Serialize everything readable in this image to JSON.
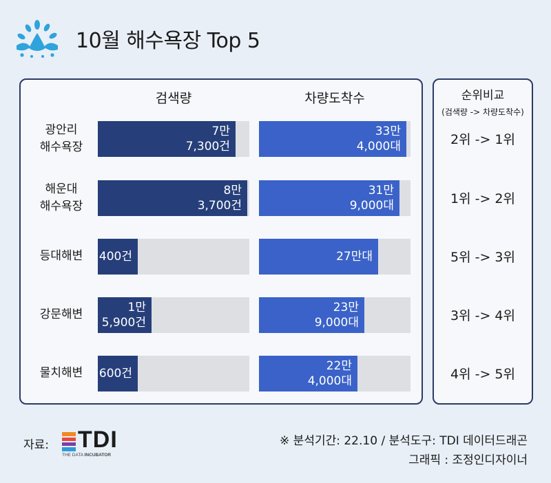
{
  "title": "10월 해수욕장 Top 5",
  "chart_data": {
    "type": "bar",
    "categories": [
      {
        "line1": "광안리",
        "line2": "해수욕장"
      },
      {
        "line1": "해운대",
        "line2": "해수욕장"
      },
      {
        "line1": "등대해변",
        "line2": ""
      },
      {
        "line1": "강문해변",
        "line2": ""
      },
      {
        "line1": "물치해변",
        "line2": ""
      }
    ],
    "series": [
      {
        "name": "검색량",
        "values": [
          77300,
          83700,
          400,
          15900,
          600
        ],
        "max": 85000,
        "labels": [
          {
            "line1": "7만",
            "line2": "7,300건"
          },
          {
            "line1": "8만",
            "line2": "3,700건"
          },
          {
            "line1": "400건",
            "line2": ""
          },
          {
            "line1": "1만",
            "line2": "5,900건"
          },
          {
            "line1": "600건",
            "line2": ""
          }
        ]
      },
      {
        "name": "차량도착수",
        "values": [
          334000,
          319000,
          270000,
          239000,
          224000
        ],
        "max": 344000,
        "labels": [
          {
            "line1": "33만",
            "line2": "4,000대"
          },
          {
            "line1": "31만",
            "line2": "9,000대"
          },
          {
            "line1": "27만대",
            "line2": ""
          },
          {
            "line1": "23만",
            "line2": "9,000대"
          },
          {
            "line1": "22만",
            "line2": "4,000대"
          }
        ]
      }
    ]
  },
  "rank": {
    "header": "순위비교",
    "subheader": "(검색량 -> 차량도착수)",
    "values": [
      "2위 -> 1위",
      "1위 -> 2위",
      "5위 -> 3위",
      "3위 -> 4위",
      "4위 -> 5위"
    ]
  },
  "footer": {
    "source_label": "자료:",
    "logo_text": "TDI",
    "logo_sub_a": "THE DATA ",
    "logo_sub_b": "INCUBATOR",
    "note1": "※ 분석기간: 22.10 / 분석도구: TDI 데이터드래곤",
    "note2": "그래픽 : 조정인디자이너"
  },
  "colors": {
    "search_bar": "#263f7a",
    "vehicle_bar": "#3a62c8",
    "track": "#dedfe2",
    "panel_border": "#2b3a66",
    "background": "#e8eff7"
  }
}
